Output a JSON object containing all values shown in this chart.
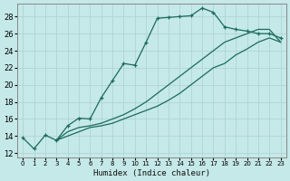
{
  "xlabel": "Humidex (Indice chaleur)",
  "xlim": [
    -0.5,
    23.5
  ],
  "ylim": [
    11.5,
    29.5
  ],
  "xticks": [
    0,
    1,
    2,
    3,
    4,
    5,
    6,
    7,
    8,
    9,
    10,
    11,
    12,
    13,
    14,
    15,
    16,
    17,
    18,
    19,
    20,
    21,
    22,
    23
  ],
  "yticks": [
    12,
    14,
    16,
    18,
    20,
    22,
    24,
    26,
    28
  ],
  "background_color": "#c5e8e8",
  "grid_color": "#b0d4d4",
  "line_color": "#1a6b5a",
  "line1_x": [
    0,
    1,
    2,
    3,
    4,
    5,
    6,
    7,
    8,
    9,
    10,
    11,
    12,
    13,
    14,
    15,
    16,
    17,
    18,
    19,
    20,
    21,
    22,
    23
  ],
  "line1_y": [
    13.8,
    12.5,
    14.1,
    13.5,
    15.2,
    16.1,
    16.0,
    18.5,
    20.5,
    22.5,
    22.3,
    25.0,
    27.8,
    27.9,
    28.0,
    28.1,
    29.0,
    28.5,
    26.8,
    26.5,
    26.3,
    26.0,
    26.0,
    25.5
  ],
  "line2_x": [
    3,
    4,
    5,
    6,
    7,
    8,
    9,
    10,
    11,
    12,
    13,
    14,
    15,
    16,
    17,
    18,
    19,
    20,
    21,
    22,
    23
  ],
  "line2_y": [
    13.5,
    14.5,
    15.0,
    15.2,
    15.5,
    16.0,
    16.5,
    17.2,
    18.0,
    19.0,
    20.0,
    21.0,
    22.0,
    23.0,
    24.0,
    25.0,
    25.5,
    26.0,
    26.5,
    26.5,
    25.0
  ],
  "line3_x": [
    3,
    4,
    5,
    6,
    7,
    8,
    9,
    10,
    11,
    12,
    13,
    14,
    15,
    16,
    17,
    18,
    19,
    20,
    21,
    22,
    23
  ],
  "line3_y": [
    13.5,
    14.0,
    14.5,
    15.0,
    15.2,
    15.5,
    16.0,
    16.5,
    17.0,
    17.5,
    18.2,
    19.0,
    20.0,
    21.0,
    22.0,
    22.5,
    23.5,
    24.2,
    25.0,
    25.5,
    25.0
  ]
}
